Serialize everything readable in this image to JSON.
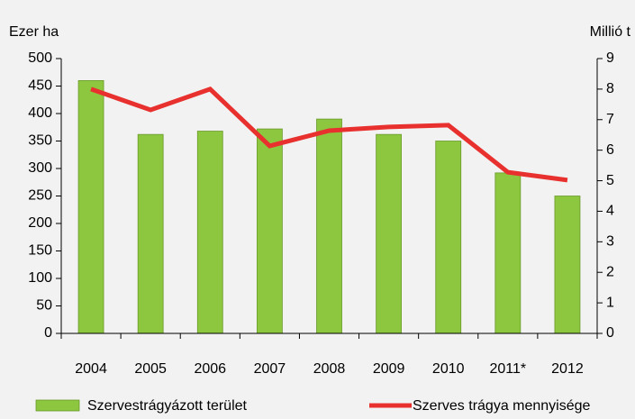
{
  "chart_data": {
    "type": "bar_line",
    "y_label": "Ezer ha",
    "y2_label": "Millió t",
    "categories": [
      "2004",
      "2005",
      "2006",
      "2007",
      "2008",
      "2009",
      "2010",
      "2011*",
      "2012"
    ],
    "series": [
      {
        "name": "Szervestrágyázott terület",
        "type": "bar",
        "color": "#8dc63f",
        "values": [
          460,
          362,
          368,
          372,
          390,
          362,
          350,
          292,
          250
        ]
      },
      {
        "name": "Szerves trágya mennyisége",
        "type": "line",
        "color": "#e8312e",
        "axis": "y2",
        "values": [
          8.0,
          7.32,
          8.0,
          6.14,
          6.64,
          6.76,
          6.82,
          5.28,
          5.02
        ]
      }
    ],
    "ylim": [
      0,
      500
    ],
    "yticks": [
      0,
      50,
      100,
      150,
      200,
      250,
      300,
      350,
      400,
      450,
      500
    ],
    "y2lim": [
      0,
      9
    ],
    "y2ticks": [
      0,
      1,
      2,
      3,
      4,
      5,
      6,
      7,
      8,
      9
    ],
    "legend": "bottom"
  }
}
